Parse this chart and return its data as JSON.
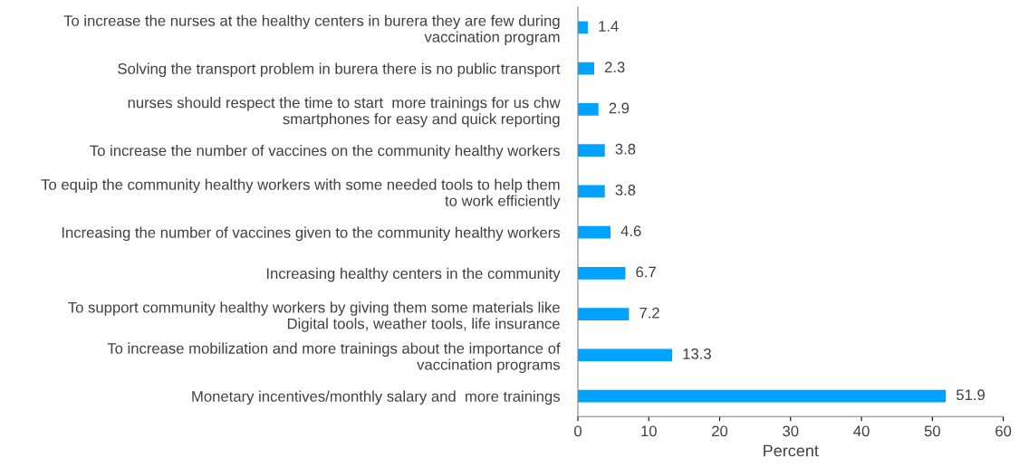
{
  "chart_data": {
    "type": "bar",
    "orientation": "horizontal",
    "xlabel": "Percent",
    "categories": [
      "To increase the nurses at the healthy centers in burera they are few during\nvaccination program",
      "Solving the transport problem in burera there is no public transport",
      "nurses should respect the time to start  more trainings for us chw\nsmartphones for easy and quick reporting",
      "To increase the number of vaccines on the community healthy workers",
      "To equip the community healthy workers with some needed tools to help them\nto work efficiently",
      "Increasing the number of vaccines given to the community healthy workers",
      "Increasing healthy centers in the community",
      "To support community healthy workers by giving them some materials like\nDigital tools, weather tools, life insurance",
      "To increase mobilization and more trainings about the importance of\nvaccination programs",
      "Monetary incentives/monthly salary and  more trainings"
    ],
    "values": [
      1.4,
      2.3,
      2.9,
      3.8,
      3.8,
      4.6,
      6.7,
      7.2,
      13.3,
      51.9
    ],
    "color": "#00a2ff",
    "data_labels": true,
    "grid": false,
    "legend": false,
    "xlim": [
      0,
      60
    ],
    "xticks": [
      0,
      10,
      20,
      30,
      40,
      50,
      60
    ]
  }
}
